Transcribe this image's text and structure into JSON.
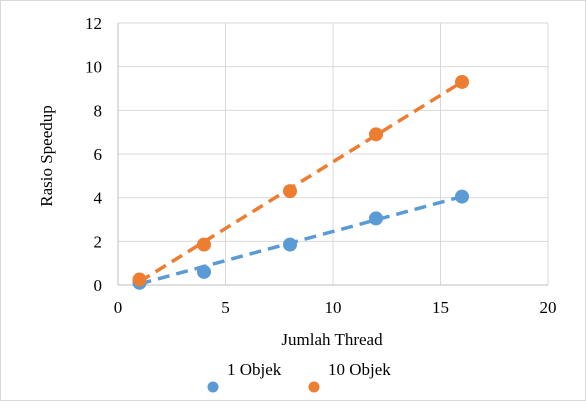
{
  "chart_data": {
    "type": "scatter",
    "title": "",
    "xlabel": "Jumlah Thread",
    "ylabel": "Rasio Speedup",
    "xlim": [
      0,
      20
    ],
    "ylim": [
      0,
      12
    ],
    "xticks": [
      0,
      5,
      10,
      15,
      20
    ],
    "yticks": [
      0,
      2,
      4,
      6,
      8,
      10,
      12
    ],
    "grid": true,
    "legend_position": "bottom",
    "series": [
      {
        "name": "1 Objek",
        "color": "#5B9BD5",
        "points": [
          [
            1,
            0.1
          ],
          [
            4,
            0.6
          ],
          [
            8,
            1.85
          ],
          [
            12,
            3.05
          ],
          [
            16,
            4.05
          ]
        ],
        "trendline": {
          "style": "dashed",
          "from": [
            1,
            0.05
          ],
          "to": [
            16,
            4.05
          ]
        }
      },
      {
        "name": "10 Objek",
        "color": "#ED7D31",
        "points": [
          [
            1,
            0.25
          ],
          [
            4,
            1.85
          ],
          [
            8,
            4.3
          ],
          [
            12,
            6.9
          ],
          [
            16,
            9.3
          ]
        ],
        "trendline": {
          "style": "dashed",
          "from": [
            1,
            0.15
          ],
          "to": [
            16,
            9.3
          ]
        }
      }
    ]
  }
}
